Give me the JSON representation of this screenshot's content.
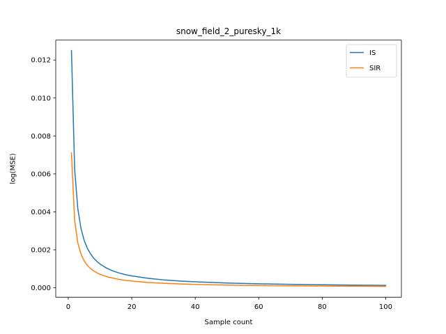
{
  "chart_data": {
    "type": "line",
    "title": "snow_field_2_puresky_1k",
    "xlabel": "Sample count",
    "ylabel": "log(MSE)",
    "xlim": [
      -3.95,
      104.95
    ],
    "ylim": [
      -0.0005,
      0.01305
    ],
    "x_ticks": [
      0,
      20,
      40,
      60,
      80,
      100
    ],
    "y_ticks": [
      0.0,
      0.002,
      0.004,
      0.006,
      0.008,
      0.01,
      0.012
    ],
    "y_tick_decimals": 3,
    "grid": false,
    "legend_position": "upper right",
    "series": [
      {
        "name": "IS",
        "color": "#1f77b4",
        "x": [
          1,
          2,
          3,
          4,
          5,
          6,
          7,
          8,
          9,
          10,
          12,
          14,
          16,
          18,
          20,
          25,
          30,
          35,
          40,
          50,
          60,
          70,
          80,
          90,
          100
        ],
        "y": [
          0.0125,
          0.00625,
          0.00417,
          0.00313,
          0.0025,
          0.00208,
          0.00179,
          0.00156,
          0.00139,
          0.00125,
          0.00104,
          0.00089,
          0.00078,
          0.00069,
          0.000625,
          0.0005,
          0.000417,
          0.000357,
          0.000313,
          0.00025,
          0.000208,
          0.000179,
          0.000156,
          0.000139,
          0.000125
        ]
      },
      {
        "name": "SIR",
        "color": "#ff7f0e",
        "x": [
          1,
          2,
          3,
          4,
          5,
          6,
          7,
          8,
          9,
          10,
          12,
          14,
          16,
          18,
          20,
          25,
          30,
          35,
          40,
          50,
          60,
          70,
          80,
          90,
          100
        ],
        "y": [
          0.0071,
          0.00355,
          0.00237,
          0.00178,
          0.00142,
          0.00118,
          0.00101,
          0.00089,
          0.00079,
          0.00071,
          0.00059,
          0.00051,
          0.00044,
          0.00039,
          0.000355,
          0.000284,
          0.000237,
          0.000203,
          0.000178,
          0.000142,
          0.000118,
          0.000101,
          8.9e-05,
          7.9e-05,
          7.1e-05
        ]
      }
    ]
  }
}
